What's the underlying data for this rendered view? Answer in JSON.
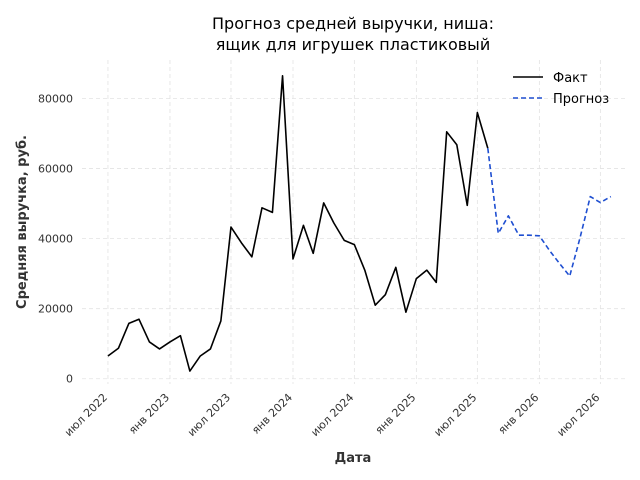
{
  "chart_data": {
    "type": "line",
    "title_lines": [
      "Прогноз средней выручки, ниша:",
      "ящик для игрушек пластиковый"
    ],
    "xlabel": "Дата",
    "ylabel": "Средняя выручка, руб.",
    "ylim": [
      -1500,
      91000
    ],
    "yticks": [
      0,
      20000,
      40000,
      60000,
      80000
    ],
    "xlim": [
      "2022-04-15",
      "2026-09-15"
    ],
    "xticks": [
      {
        "date": "2022-07-01",
        "label": "июл 2022"
      },
      {
        "date": "2023-01-01",
        "label": "янв 2023"
      },
      {
        "date": "2023-07-01",
        "label": "июл 2023"
      },
      {
        "date": "2024-01-01",
        "label": "янв 2024"
      },
      {
        "date": "2024-07-01",
        "label": "июл 2024"
      },
      {
        "date": "2025-01-01",
        "label": "янв 2025"
      },
      {
        "date": "2025-07-01",
        "label": "июл 2025"
      },
      {
        "date": "2026-01-01",
        "label": "янв 2026"
      },
      {
        "date": "2026-07-01",
        "label": "июл 2026"
      }
    ],
    "grid": true,
    "legend_position": "top-right",
    "series": [
      {
        "name": "Факт",
        "color": "#000000",
        "dash": "solid",
        "points": [
          [
            "2022-07-01",
            6500
          ],
          [
            "2022-08-01",
            8700
          ],
          [
            "2022-09-01",
            15800
          ],
          [
            "2022-10-01",
            17000
          ],
          [
            "2022-11-01",
            10500
          ],
          [
            "2022-12-01",
            8500
          ],
          [
            "2023-01-01",
            10500
          ],
          [
            "2023-02-01",
            12300
          ],
          [
            "2023-03-01",
            2200
          ],
          [
            "2023-04-01",
            6500
          ],
          [
            "2023-05-01",
            8500
          ],
          [
            "2023-06-01",
            16500
          ],
          [
            "2023-07-01",
            43300
          ],
          [
            "2023-08-01",
            38800
          ],
          [
            "2023-09-01",
            34800
          ],
          [
            "2023-10-01",
            48800
          ],
          [
            "2023-11-01",
            47500
          ],
          [
            "2023-12-01",
            86500
          ],
          [
            "2024-01-01",
            34200
          ],
          [
            "2024-02-01",
            43800
          ],
          [
            "2024-03-01",
            35800
          ],
          [
            "2024-04-01",
            50200
          ],
          [
            "2024-05-01",
            44500
          ],
          [
            "2024-06-01",
            39500
          ],
          [
            "2024-07-01",
            38300
          ],
          [
            "2024-08-01",
            31000
          ],
          [
            "2024-09-01",
            21000
          ],
          [
            "2024-10-01",
            24000
          ],
          [
            "2024-11-01",
            31800
          ],
          [
            "2024-12-01",
            19000
          ],
          [
            "2025-01-01",
            28600
          ],
          [
            "2025-02-01",
            31000
          ],
          [
            "2025-03-01",
            27500
          ],
          [
            "2025-04-01",
            70500
          ],
          [
            "2025-05-01",
            66800
          ],
          [
            "2025-06-01",
            49500
          ],
          [
            "2025-07-01",
            76000
          ],
          [
            "2025-08-01",
            65800
          ]
        ]
      },
      {
        "name": "Прогноз",
        "color": "#1f4fd1",
        "dash": "dashed",
        "points": [
          [
            "2025-08-01",
            65800
          ],
          [
            "2025-09-01",
            41500
          ],
          [
            "2025-10-01",
            46500
          ],
          [
            "2025-11-01",
            41000
          ],
          [
            "2025-12-01",
            41000
          ],
          [
            "2026-01-01",
            40800
          ],
          [
            "2026-02-01",
            36500
          ],
          [
            "2026-03-01",
            33000
          ],
          [
            "2026-04-01",
            29300
          ],
          [
            "2026-05-01",
            40000
          ],
          [
            "2026-06-01",
            52000
          ],
          [
            "2026-07-01",
            50300
          ],
          [
            "2026-08-01",
            52000
          ]
        ]
      }
    ]
  }
}
